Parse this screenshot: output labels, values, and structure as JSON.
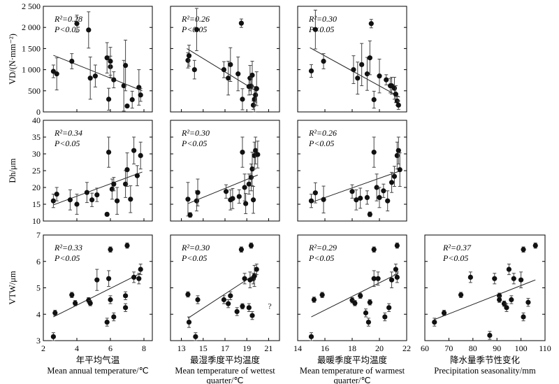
{
  "chart_data": [
    {
      "type": "scatter",
      "panel": "VD-MAT",
      "ylabel": "VD/(N·mm⁻²)",
      "ylim": [
        0,
        2500
      ],
      "yticks": [
        "0",
        "500",
        "1 000",
        "1 500",
        "2 000",
        "2 500"
      ],
      "xlim": [
        2,
        8.5
      ],
      "stats": {
        "r2": "R²=0.28",
        "p": "P<0.05"
      },
      "trend": [
        [
          2.6,
          1340
        ],
        [
          7.9,
          500
        ]
      ],
      "points": [
        [
          2.6,
          960,
          150
        ],
        [
          2.8,
          900,
          380
        ],
        [
          3.7,
          1200,
          180
        ],
        [
          4.0,
          2090,
          200
        ],
        [
          4.7,
          1940,
          430
        ],
        [
          4.8,
          800,
          500
        ],
        [
          5.1,
          850,
          260
        ],
        [
          5.8,
          1280,
          360
        ],
        [
          5.9,
          300,
          260
        ],
        [
          6.0,
          1070,
          250
        ],
        [
          6.0,
          1200,
          330
        ],
        [
          6.2,
          760,
          190
        ],
        [
          6.8,
          620,
          600
        ],
        [
          6.9,
          1100,
          600
        ],
        [
          7.0,
          140,
          0
        ],
        [
          7.3,
          290,
          200
        ],
        [
          7.7,
          580,
          420
        ],
        [
          7.8,
          400,
          150
        ]
      ]
    },
    {
      "type": "scatter",
      "panel": "VD-MTWQ",
      "ylim": [
        0,
        2500
      ],
      "xlim": [
        12,
        22
      ],
      "stats": {
        "r2": "R²=0.26",
        "p": "P<0.05"
      },
      "trend": [
        [
          13.5,
          1500
        ],
        [
          19.9,
          490
        ]
      ],
      "points": [
        [
          13.6,
          1220,
          180
        ],
        [
          13.7,
          1330,
          250
        ],
        [
          14.2,
          1000,
          220
        ],
        [
          14.4,
          1950,
          500
        ],
        [
          16.9,
          1000,
          190
        ],
        [
          17.3,
          800,
          400
        ],
        [
          17.5,
          1120,
          400
        ],
        [
          18.2,
          900,
          400
        ],
        [
          18.5,
          2100,
          100
        ],
        [
          18.6,
          300,
          250
        ],
        [
          19.2,
          600,
          200
        ],
        [
          19.3,
          800,
          300
        ],
        [
          19.4,
          610,
          200
        ],
        [
          19.5,
          870,
          330
        ],
        [
          19.6,
          160,
          100
        ],
        [
          19.7,
          300,
          300
        ],
        [
          19.8,
          400,
          170
        ],
        [
          19.9,
          550,
          400
        ]
      ]
    },
    {
      "type": "scatter",
      "panel": "VD-MTWAQ",
      "ylim": [
        0,
        2500
      ],
      "xlim": [
        14,
        22
      ],
      "stats": {
        "r2": "R²=0.30",
        "p": "P<0.05"
      },
      "trend": [
        [
          14.9,
          1520
        ],
        [
          21.5,
          350
        ]
      ],
      "points": [
        [
          15.0,
          970,
          150
        ],
        [
          15.3,
          1950,
          460
        ],
        [
          15.9,
          1200,
          180
        ],
        [
          18.1,
          1000,
          330
        ],
        [
          18.4,
          800,
          380
        ],
        [
          18.7,
          1120,
          500
        ],
        [
          19.1,
          900,
          390
        ],
        [
          19.3,
          1280,
          400
        ],
        [
          19.4,
          2090,
          100
        ],
        [
          19.6,
          290,
          200
        ],
        [
          20.0,
          850,
          400
        ],
        [
          20.5,
          760,
          120
        ],
        [
          20.8,
          620,
          170
        ],
        [
          20.9,
          620,
          200
        ],
        [
          21.1,
          560,
          260
        ],
        [
          21.2,
          420,
          200
        ],
        [
          21.3,
          260,
          100
        ],
        [
          21.4,
          160,
          100
        ]
      ]
    },
    {
      "type": "scatter",
      "panel": "Dh-MAT",
      "ylabel": "Dh/μm",
      "ylim": [
        10,
        40
      ],
      "yticks": [
        "10",
        "15",
        "20",
        "25",
        "30",
        "35",
        "40"
      ],
      "xlim": [
        2,
        8.5
      ],
      "stats": {
        "r2": "R²=0.34",
        "p": "P<0.05"
      },
      "trend": [
        [
          2.6,
          14.8
        ],
        [
          7.9,
          24.6
        ]
      ],
      "points": [
        [
          2.6,
          16,
          2
        ],
        [
          2.8,
          18,
          2
        ],
        [
          3.6,
          16.3,
          3
        ],
        [
          4.0,
          15,
          3
        ],
        [
          4.6,
          18.5,
          3
        ],
        [
          4.9,
          16.3,
          2
        ],
        [
          5.2,
          17.8,
          2
        ],
        [
          5.8,
          12,
          0.5
        ],
        [
          5.9,
          30.5,
          4.5
        ],
        [
          6.1,
          19.5,
          3
        ],
        [
          6.2,
          21,
          2
        ],
        [
          6.4,
          16,
          4
        ],
        [
          6.9,
          21,
          4
        ],
        [
          7.0,
          25.3,
          5
        ],
        [
          7.2,
          16.5,
          4
        ],
        [
          7.4,
          31,
          4
        ],
        [
          7.6,
          23.5,
          3
        ],
        [
          7.8,
          29.5,
          4
        ]
      ]
    },
    {
      "type": "scatter",
      "panel": "Dh-MTWQ",
      "ylim": [
        10,
        40
      ],
      "xlim": [
        12,
        22
      ],
      "stats": {
        "r2": "R²=0.30",
        "p": "P<0.05"
      },
      "trend": [
        [
          13.6,
          15.2
        ],
        [
          20.0,
          23.7
        ]
      ],
      "points": [
        [
          13.6,
          16.5,
          5
        ],
        [
          13.8,
          11.8,
          0.7
        ],
        [
          14.4,
          16,
          3
        ],
        [
          14.5,
          18.5,
          4
        ],
        [
          17.1,
          18.8,
          2
        ],
        [
          17.5,
          16.3,
          3
        ],
        [
          17.7,
          16.7,
          3
        ],
        [
          18.3,
          17.3,
          2
        ],
        [
          18.6,
          30.5,
          4.5
        ],
        [
          18.8,
          20,
          4
        ],
        [
          18.9,
          15.2,
          3
        ],
        [
          19.2,
          21,
          3
        ],
        [
          19.4,
          23,
          4
        ],
        [
          19.5,
          25.5,
          5
        ],
        [
          19.6,
          16.3,
          4
        ],
        [
          19.7,
          29.5,
          4
        ],
        [
          19.8,
          31,
          4
        ],
        [
          20.0,
          29.8,
          4
        ]
      ]
    },
    {
      "type": "scatter",
      "panel": "Dh-MTWAQ",
      "ylim": [
        10,
        40
      ],
      "xlim": [
        14,
        22
      ],
      "stats": {
        "r2": "R²=0.26",
        "p": "P<0.05"
      },
      "trend": [
        [
          14.9,
          15.4
        ],
        [
          21.5,
          24.9
        ]
      ],
      "points": [
        [
          15.0,
          16,
          2
        ],
        [
          15.3,
          18.4,
          3
        ],
        [
          15.9,
          16.4,
          4
        ],
        [
          18.0,
          18.8,
          2
        ],
        [
          18.3,
          16.3,
          3
        ],
        [
          18.6,
          16.8,
          3
        ],
        [
          19.1,
          17,
          2
        ],
        [
          19.3,
          12,
          0.7
        ],
        [
          19.6,
          30.5,
          4.5
        ],
        [
          19.8,
          20,
          4
        ],
        [
          20.0,
          17,
          3
        ],
        [
          20.3,
          19,
          2
        ],
        [
          20.6,
          16,
          3
        ],
        [
          20.9,
          21.5,
          3
        ],
        [
          21.1,
          23.3,
          3
        ],
        [
          21.3,
          29.5,
          4
        ],
        [
          21.4,
          31,
          4
        ],
        [
          21.5,
          25.3,
          5
        ]
      ]
    },
    {
      "type": "scatter",
      "panel": "VTW-MAT",
      "ylabel": "VTW/μm",
      "ylim": [
        3,
        7
      ],
      "yticks": [
        "3",
        "4",
        "5",
        "6",
        "7"
      ],
      "xlim": [
        2,
        8.5
      ],
      "xticks": [
        "2",
        "4",
        "6",
        "8"
      ],
      "xlabel_cn": "年平均气温",
      "xlabel_en": "Mean annual temperature/℃",
      "stats": {
        "r2": "R²=0.33",
        "p": "P<0.05"
      },
      "trend": [
        [
          2.6,
          3.9
        ],
        [
          7.8,
          5.55
        ]
      ],
      "points": [
        [
          2.6,
          3.15,
          0.15
        ],
        [
          2.7,
          4.05,
          0.1
        ],
        [
          3.7,
          4.73,
          0.1
        ],
        [
          3.9,
          4.42,
          0.1
        ],
        [
          4.7,
          4.53,
          0.1
        ],
        [
          4.8,
          4.42,
          0.1
        ],
        [
          5.2,
          5.3,
          0.4
        ],
        [
          5.8,
          3.7,
          0.15
        ],
        [
          5.9,
          5.35,
          0.3
        ],
        [
          6.0,
          6.45,
          0.1
        ],
        [
          6.0,
          4.55,
          0.15
        ],
        [
          6.2,
          3.9,
          0.15
        ],
        [
          6.9,
          4.7,
          0.15
        ],
        [
          6.9,
          4.25,
          0.15
        ],
        [
          7.0,
          6.6,
          0.1
        ],
        [
          7.4,
          5.4,
          0.2
        ],
        [
          7.7,
          5.35,
          0.2
        ],
        [
          7.8,
          5.7,
          0.2
        ]
      ]
    },
    {
      "type": "scatter",
      "panel": "VTW-MTWQ",
      "ylim": [
        3,
        7
      ],
      "xlim": [
        12,
        22
      ],
      "xticks": [
        "13",
        "15",
        "17",
        "19",
        "21"
      ],
      "xlabel_cn": "最湿季度平均温度",
      "xlabel_en": "Mean temperature of wettest",
      "xlabel_en2": "quarter/℃",
      "stats": {
        "r2": "R²=0.30",
        "p": "P<0.05"
      },
      "trend": [
        [
          13.6,
          3.85
        ],
        [
          19.9,
          5.55
        ]
      ],
      "note": "?",
      "points": [
        [
          13.6,
          4.75,
          0.1
        ],
        [
          13.7,
          3.7,
          0.2
        ],
        [
          14.3,
          3.15,
          0.15
        ],
        [
          14.5,
          4.55,
          0.15
        ],
        [
          16.9,
          4.55,
          0.15
        ],
        [
          17.3,
          4.4,
          0.15
        ],
        [
          17.5,
          4.7,
          0.15
        ],
        [
          18.1,
          4.1,
          0.15
        ],
        [
          18.5,
          6.45,
          0.1
        ],
        [
          18.6,
          4.3,
          0.1
        ],
        [
          18.8,
          5.35,
          0.2
        ],
        [
          19.2,
          4.25,
          0.15
        ],
        [
          19.3,
          5.3,
          0.3
        ],
        [
          19.4,
          6.6,
          0.1
        ],
        [
          19.5,
          3.95,
          0.15
        ],
        [
          19.6,
          5.35,
          0.2
        ],
        [
          19.7,
          5.45,
          0.4
        ],
        [
          19.9,
          5.7,
          0.2
        ]
      ]
    },
    {
      "type": "scatter",
      "panel": "VTW-MTWAQ",
      "ylim": [
        3,
        7
      ],
      "xlim": [
        14,
        22
      ],
      "xticks": [
        "14",
        "16",
        "18",
        "20",
        "22"
      ],
      "xlabel_cn": "最暖季度平均温度",
      "xlabel_en": "Mean temperature of warmest",
      "xlabel_en2": "quarter/℃",
      "stats": {
        "r2": "R²=0.29",
        "p": "P<0.05"
      },
      "trend": [
        [
          15.0,
          3.9
        ],
        [
          21.4,
          5.55
        ]
      ],
      "points": [
        [
          15.0,
          3.15,
          0.15
        ],
        [
          15.2,
          4.55,
          0.1
        ],
        [
          15.8,
          4.73,
          0.1
        ],
        [
          18.0,
          4.53,
          0.1
        ],
        [
          18.2,
          4.42,
          0.1
        ],
        [
          18.6,
          4.7,
          0.1
        ],
        [
          19.0,
          4.05,
          0.15
        ],
        [
          19.2,
          3.7,
          0.15
        ],
        [
          19.3,
          4.45,
          0.1
        ],
        [
          19.6,
          5.35,
          0.3
        ],
        [
          19.6,
          6.45,
          0.1
        ],
        [
          19.9,
          5.35,
          0.25
        ],
        [
          20.4,
          3.9,
          0.15
        ],
        [
          20.7,
          4.25,
          0.15
        ],
        [
          20.9,
          5.3,
          0.3
        ],
        [
          21.2,
          5.7,
          0.2
        ],
        [
          21.3,
          5.4,
          0.2
        ],
        [
          21.3,
          6.6,
          0.1
        ]
      ]
    },
    {
      "type": "scatter",
      "panel": "VTW-PS",
      "ylim": [
        3,
        7
      ],
      "xlim": [
        60,
        110
      ],
      "xticks": [
        "60",
        "70",
        "80",
        "90",
        "100",
        "110"
      ],
      "xlabel_cn": "降水量季节性变化",
      "xlabel_en": "Precipitation seasonality/mm",
      "stats": {
        "r2": "R²=0.37",
        "p": "P<0.05"
      },
      "trend": [
        [
          64,
          3.8
        ],
        [
          106,
          5.3
        ]
      ],
      "points": [
        [
          64,
          3.7,
          0.15
        ],
        [
          68,
          4.05,
          0.1
        ],
        [
          75,
          4.73,
          0.1
        ],
        [
          79,
          5.4,
          0.2
        ],
        [
          87,
          3.2,
          0.15
        ],
        [
          89,
          5.35,
          0.2
        ],
        [
          91,
          4.7,
          0.1
        ],
        [
          91,
          4.55,
          0.1
        ],
        [
          93,
          4.4,
          0.1
        ],
        [
          94,
          4.25,
          0.15
        ],
        [
          95,
          5.7,
          0.2
        ],
        [
          96,
          4.55,
          0.15
        ],
        [
          97,
          5.35,
          0.2
        ],
        [
          100,
          5.3,
          0.3
        ],
        [
          101,
          6.45,
          0.1
        ],
        [
          101,
          3.9,
          0.15
        ],
        [
          103,
          4.45,
          0.15
        ],
        [
          106,
          6.6,
          0.1
        ]
      ]
    }
  ]
}
